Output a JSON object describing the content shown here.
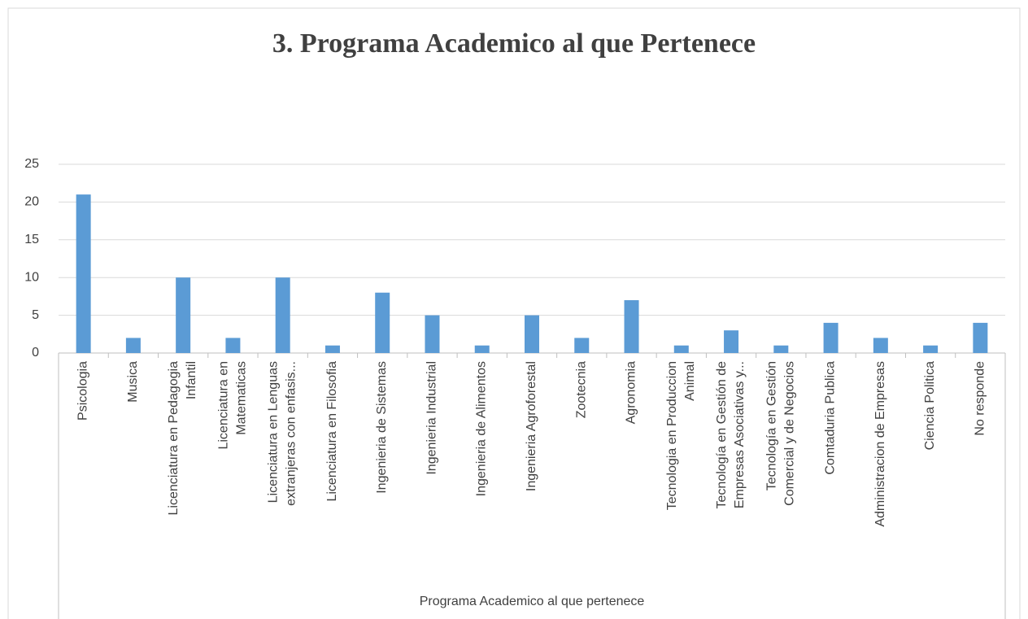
{
  "chart_data": {
    "type": "bar",
    "title": "3. Programa Academico al que Pertenece",
    "x_label": "Programa Academico al que pertenece",
    "categories": [
      "Psicologia",
      "Musica",
      "Licenciatura en Pedagogia Infantil",
      "Licenciatura en Matematicas",
      "Licenciatura en Lenguas extranjeras con enfasis...",
      "Licenciatura en Filosofia",
      "Ingenieria de Sistemas",
      "Ingenieria Industrial",
      "Ingenieria de Alimentos",
      "Ingenieria Agroforestal",
      "Zootecnia",
      "Agronomia",
      "Tecnologia en Produccion Animal",
      "Tecnología en Gestión de Empresas Asociativas y...",
      "Tecnología en Gestión Comercial y de Negocios",
      "Comtaduria Publica",
      "Administracion de Empresas",
      "Ciencia Politica",
      "No responde"
    ],
    "values": [
      21,
      2,
      10,
      2,
      10,
      1,
      8,
      5,
      1,
      5,
      2,
      7,
      1,
      3,
      1,
      4,
      2,
      1,
      4
    ],
    "color": "#5b9bd5",
    "ylim": [
      0,
      25
    ],
    "yticks": [
      0,
      5,
      10,
      15,
      20,
      25
    ],
    "grid": true
  }
}
